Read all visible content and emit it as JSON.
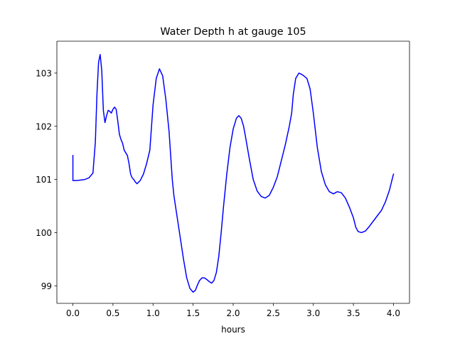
{
  "chart_data": {
    "type": "line",
    "title": "Water Depth h at gauge 105",
    "xlabel": "hours",
    "ylabel": "",
    "xlim": [
      -0.2,
      4.2
    ],
    "ylim": [
      98.67,
      103.6
    ],
    "xticks": [
      0.0,
      0.5,
      1.0,
      1.5,
      2.0,
      2.5,
      3.0,
      3.5,
      4.0
    ],
    "xtick_labels": [
      "0.0",
      "0.5",
      "1.0",
      "1.5",
      "2.0",
      "2.5",
      "3.0",
      "3.5",
      "4.0"
    ],
    "yticks": [
      99,
      100,
      101,
      102,
      103
    ],
    "ytick_labels": [
      "99",
      "100",
      "101",
      "102",
      "103"
    ],
    "grid": false,
    "series": [
      {
        "color": "#0000ff",
        "x": [
          0.0,
          0.0,
          0.05,
          0.1,
          0.15,
          0.2,
          0.25,
          0.28,
          0.3,
          0.32,
          0.34,
          0.36,
          0.38,
          0.4,
          0.42,
          0.44,
          0.46,
          0.48,
          0.5,
          0.52,
          0.54,
          0.56,
          0.58,
          0.6,
          0.62,
          0.64,
          0.66,
          0.68,
          0.7,
          0.72,
          0.74,
          0.76,
          0.78,
          0.8,
          0.84,
          0.88,
          0.92,
          0.96,
          1.0,
          1.04,
          1.08,
          1.12,
          1.16,
          1.2,
          1.22,
          1.24,
          1.26,
          1.3,
          1.34,
          1.38,
          1.42,
          1.46,
          1.5,
          1.53,
          1.55,
          1.58,
          1.61,
          1.64,
          1.67,
          1.7,
          1.73,
          1.76,
          1.79,
          1.82,
          1.85,
          1.88,
          1.92,
          1.96,
          2.0,
          2.04,
          2.07,
          2.1,
          2.13,
          2.16,
          2.2,
          2.25,
          2.3,
          2.35,
          2.4,
          2.45,
          2.5,
          2.55,
          2.6,
          2.65,
          2.7,
          2.73,
          2.75,
          2.78,
          2.82,
          2.85,
          2.88,
          2.92,
          2.96,
          3.0,
          3.05,
          3.1,
          3.15,
          3.2,
          3.25,
          3.3,
          3.35,
          3.4,
          3.45,
          3.5,
          3.53,
          3.56,
          3.6,
          3.65,
          3.7,
          3.75,
          3.8,
          3.85,
          3.9,
          3.95,
          4.0
        ],
        "y": [
          101.45,
          100.98,
          100.98,
          100.99,
          101.0,
          101.03,
          101.12,
          101.7,
          102.6,
          103.2,
          103.35,
          103.05,
          102.3,
          102.07,
          102.2,
          102.3,
          102.28,
          102.25,
          102.32,
          102.36,
          102.32,
          102.1,
          101.85,
          101.75,
          101.68,
          101.55,
          101.5,
          101.45,
          101.3,
          101.1,
          101.03,
          101.0,
          100.95,
          100.92,
          100.98,
          101.1,
          101.3,
          101.55,
          102.4,
          102.9,
          103.08,
          102.95,
          102.5,
          101.9,
          101.45,
          101.0,
          100.7,
          100.3,
          99.9,
          99.5,
          99.15,
          98.95,
          98.88,
          98.92,
          99.0,
          99.1,
          99.15,
          99.15,
          99.12,
          99.08,
          99.05,
          99.1,
          99.25,
          99.55,
          100.0,
          100.5,
          101.1,
          101.6,
          101.95,
          102.15,
          102.2,
          102.15,
          102.0,
          101.75,
          101.4,
          101.0,
          100.78,
          100.68,
          100.65,
          100.7,
          100.85,
          101.05,
          101.35,
          101.65,
          102.0,
          102.25,
          102.6,
          102.9,
          103.0,
          102.98,
          102.95,
          102.9,
          102.7,
          102.25,
          101.6,
          101.15,
          100.9,
          100.77,
          100.73,
          100.77,
          100.75,
          100.65,
          100.48,
          100.28,
          100.1,
          100.02,
          100.0,
          100.03,
          100.12,
          100.22,
          100.32,
          100.42,
          100.58,
          100.8,
          101.1
        ]
      }
    ]
  },
  "colors": {
    "line": "#0000ff",
    "axes": "#000000",
    "background": "#ffffff"
  }
}
